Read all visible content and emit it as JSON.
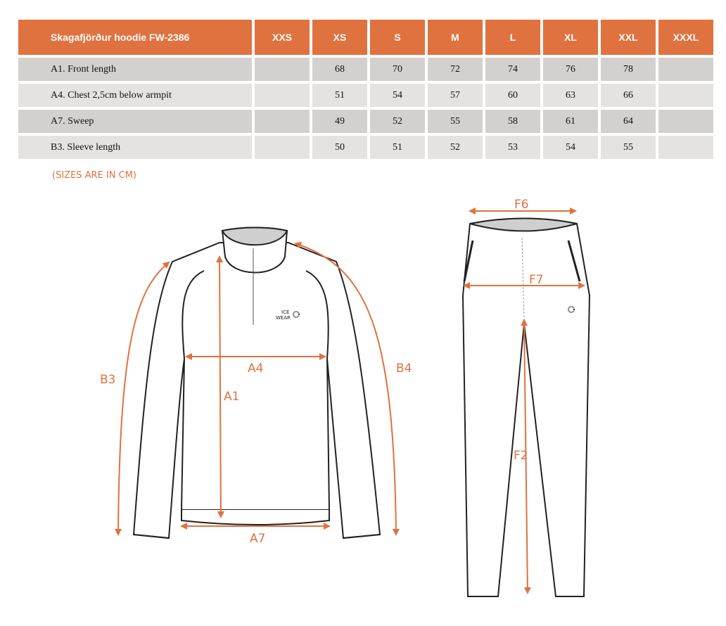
{
  "table": {
    "title": "Skagafjörður hoodie FW-2386",
    "sizes": [
      "XXS",
      "XS",
      "S",
      "M",
      "L",
      "XL",
      "XXL",
      "XXXL"
    ],
    "rows": [
      {
        "label": "A1. Front length",
        "values": [
          "",
          "68",
          "70",
          "72",
          "74",
          "76",
          "78",
          ""
        ]
      },
      {
        "label": "A4. Chest 2,5cm below armpit",
        "values": [
          "",
          "51",
          "54",
          "57",
          "60",
          "63",
          "66",
          ""
        ]
      },
      {
        "label": "A7. Sweep",
        "values": [
          "",
          "49",
          "52",
          "55",
          "58",
          "61",
          "64",
          ""
        ]
      },
      {
        "label": "B3. Sleeve length",
        "values": [
          "",
          "50",
          "51",
          "52",
          "53",
          "54",
          "55",
          ""
        ]
      }
    ]
  },
  "note": "(SIZES ARE IN CM)",
  "diagram": {
    "labels": {
      "a1": "A1",
      "a4": "A4",
      "a7": "A7",
      "b3": "B3",
      "b4": "B4",
      "f2": "F2",
      "f6": "F6",
      "f7": "F7"
    },
    "logo": "ICE WEAR",
    "accent": "#e07240",
    "header_color": "#e07240"
  }
}
